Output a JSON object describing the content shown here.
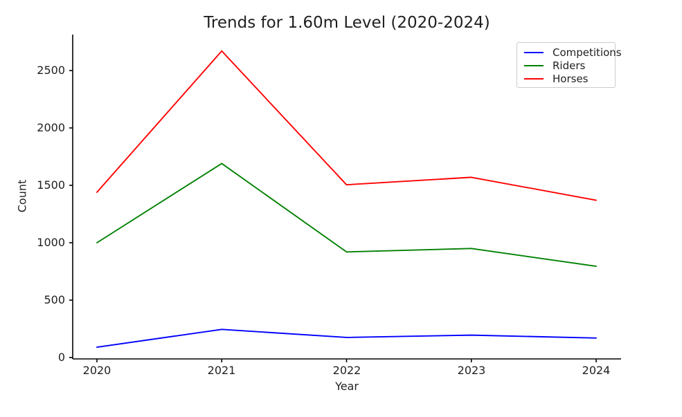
{
  "chart_data": {
    "type": "line",
    "title": "Trends for 1.60m Level (2020-2024)",
    "xlabel": "Year",
    "ylabel": "Count",
    "categories": [
      2020,
      2021,
      2022,
      2023,
      2024
    ],
    "y_ticks": [
      0,
      500,
      1000,
      1500,
      2000,
      2500
    ],
    "ylim": [
      0,
      2810
    ],
    "grid": false,
    "legend_position": "upper-right",
    "axis_color": "#000000",
    "text_color": "#1f1f1f",
    "series": [
      {
        "name": "Competitions",
        "color": "#0000ff",
        "values": [
          90,
          245,
          175,
          195,
          170
        ]
      },
      {
        "name": "Riders",
        "color": "#008000",
        "values": [
          1000,
          1690,
          920,
          950,
          795
        ]
      },
      {
        "name": "Horses",
        "color": "#ff0000",
        "values": [
          1440,
          2670,
          1505,
          1570,
          1370
        ]
      }
    ]
  }
}
